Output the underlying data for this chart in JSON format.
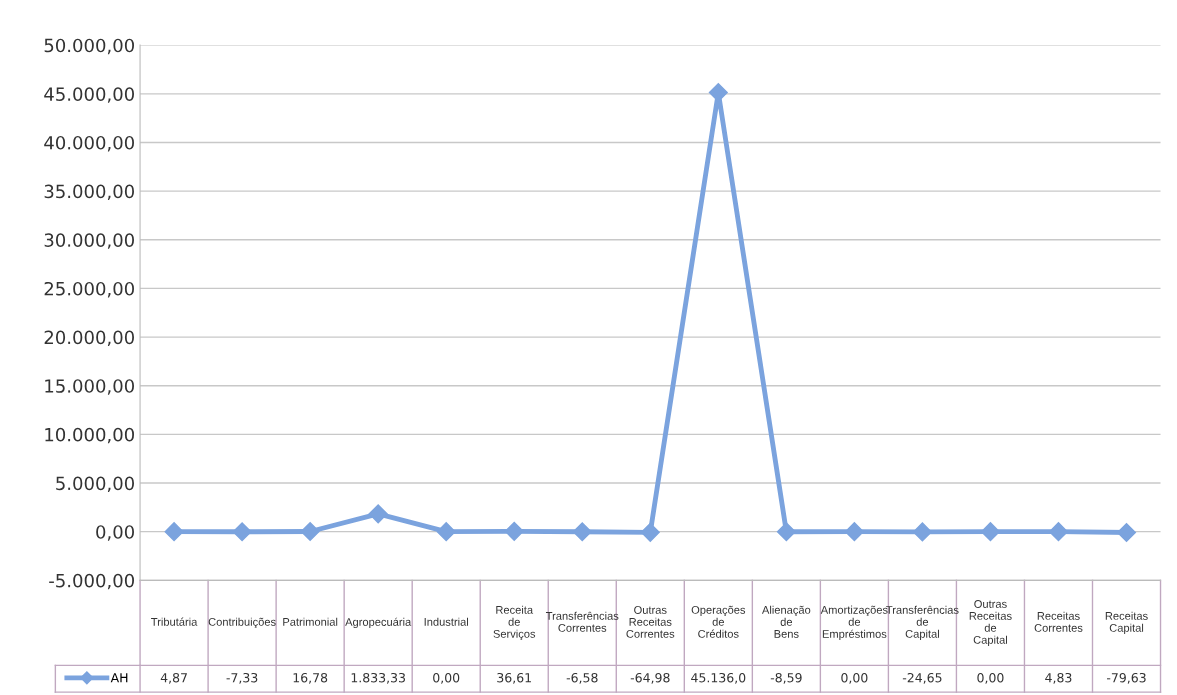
{
  "chart_data": {
    "type": "line",
    "categories": [
      "Tributária",
      "Contribuições",
      "Patrimonial",
      "Agropecuária",
      "Industrial",
      "Receita de Serviços",
      "Transferências Correntes",
      "Outras Receitas Correntes",
      "Operações de Créditos",
      "Alienação de Bens",
      "Amortizações de Empréstimos",
      "Transferências de Capital",
      "Outras Receitas de Capital",
      "Receitas Correntes",
      "Receitas Capital"
    ],
    "series": [
      {
        "name": "AH",
        "color": "#7ba3de",
        "values": [
          4.87,
          -7.33,
          16.78,
          1833.33,
          0.0,
          36.61,
          -6.58,
          -64.98,
          45136.0,
          -8.59,
          0.0,
          -24.65,
          0.0,
          4.83,
          -79.63
        ],
        "value_labels": [
          "4,87",
          "-7,33",
          "16,78",
          "1.833,33",
          "0,00",
          "36,61",
          "-6,58",
          "-64,98",
          "45.136,0",
          "-8,59",
          "0,00",
          "-24,65",
          "0,00",
          "4,83",
          "-79,63"
        ]
      }
    ],
    "ylim": [
      -5000,
      50000
    ],
    "yticks": [
      {
        "value": -5000,
        "label": "-5.000,00"
      },
      {
        "value": 0,
        "label": "0,00"
      },
      {
        "value": 5000,
        "label": "5.000,00"
      },
      {
        "value": 10000,
        "label": "10.000,00"
      },
      {
        "value": 15000,
        "label": "15.000,00"
      },
      {
        "value": 20000,
        "label": "20.000,00"
      },
      {
        "value": 25000,
        "label": "25.000,00"
      },
      {
        "value": 30000,
        "label": "30.000,00"
      },
      {
        "value": 35000,
        "label": "35.000,00"
      },
      {
        "value": 40000,
        "label": "40.000,00"
      },
      {
        "value": 45000,
        "label": "45.000,00"
      },
      {
        "value": 50000,
        "label": "50.000,00"
      }
    ],
    "grid": "y",
    "legend": "bottom",
    "marker": "diamond",
    "line_style": "solid"
  }
}
